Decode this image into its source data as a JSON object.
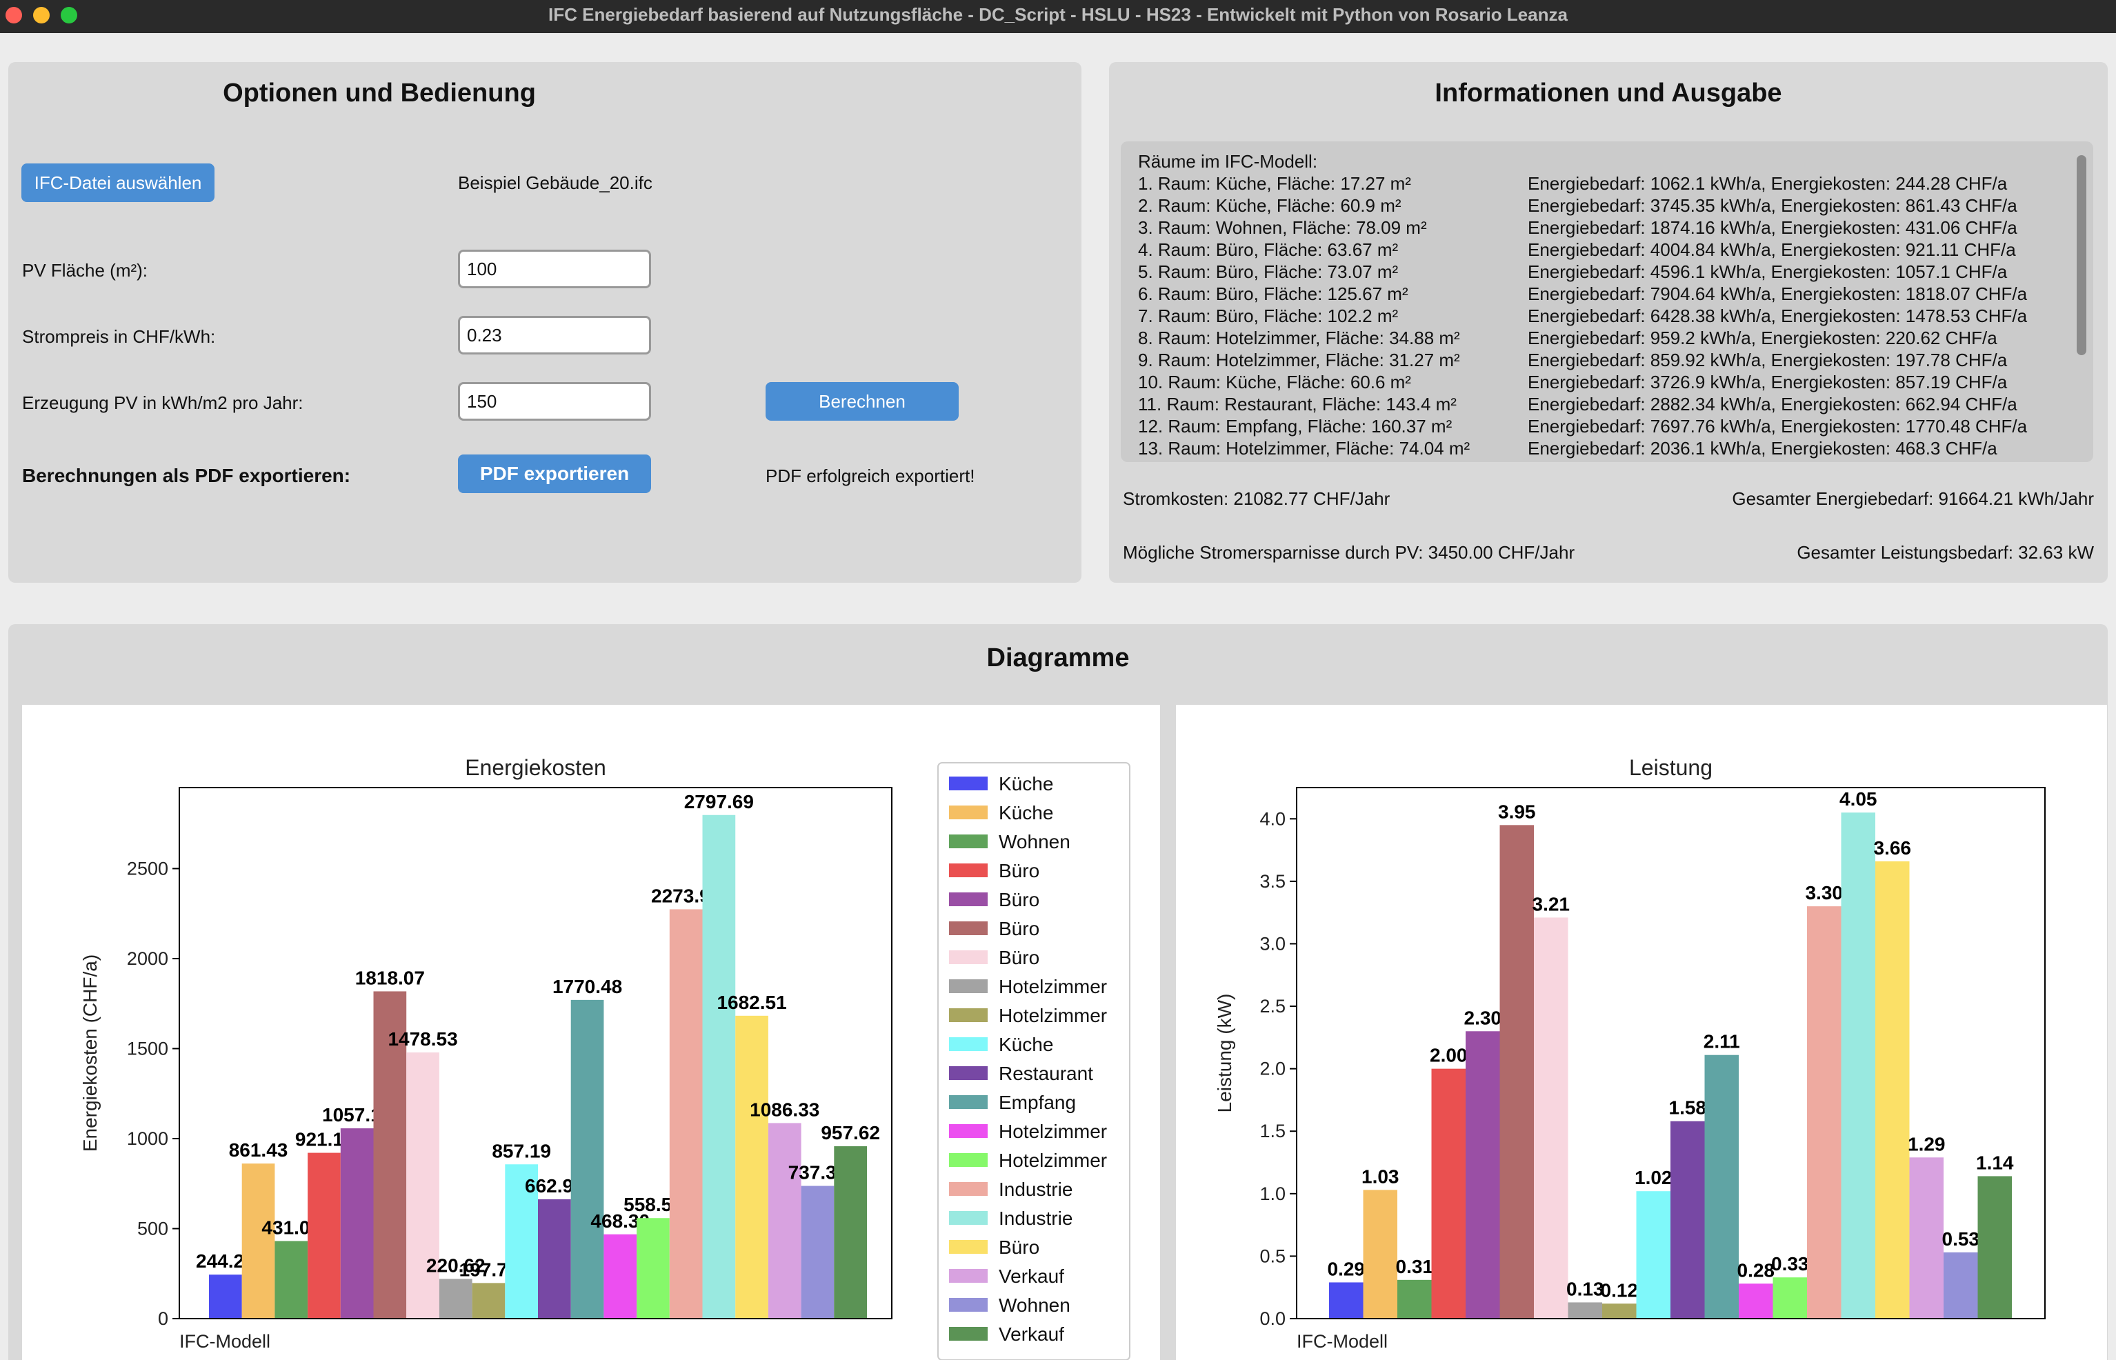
{
  "window": {
    "title": "IFC Energiebedarf basierend auf Nutzungsfläche - DC_Script - HSLU - HS23 - Entwickelt mit Python von Rosario Leanza"
  },
  "options": {
    "title": "Optionen und Bedienung",
    "select_button": "IFC-Datei auswählen",
    "file_name": "Beispiel Gebäude_20.ifc",
    "pv_area_label": "PV Fläche (m²):",
    "pv_area_value": "100",
    "price_label": "Strompreis in CHF/kWh:",
    "price_value": "0.23",
    "production_label": "Erzeugung PV in kWh/m2 pro Jahr:",
    "production_value": "150",
    "calc_button": "Berechnen",
    "export_label": "Berechnungen als PDF exportieren:",
    "export_button": "PDF exportieren",
    "export_status": "PDF erfolgreich exportiert!"
  },
  "info": {
    "title": "Informationen und Ausgabe",
    "list_header": "Räume im IFC-Modell:",
    "rooms": [
      {
        "left": "1. Raum: Küche, Fläche: 17.27 m²",
        "right": "Energiebedarf: 1062.1 kWh/a, Energiekosten: 244.28 CHF/a"
      },
      {
        "left": "2. Raum: Küche, Fläche: 60.9 m²",
        "right": "Energiebedarf: 3745.35 kWh/a, Energiekosten: 861.43 CHF/a"
      },
      {
        "left": "3. Raum: Wohnen, Fläche: 78.09 m²",
        "right": "Energiebedarf: 1874.16 kWh/a, Energiekosten: 431.06 CHF/a"
      },
      {
        "left": "4. Raum: Büro, Fläche: 63.67 m²",
        "right": "Energiebedarf: 4004.84 kWh/a, Energiekosten: 921.11 CHF/a"
      },
      {
        "left": "5. Raum: Büro, Fläche: 73.07 m²",
        "right": "Energiebedarf: 4596.1 kWh/a, Energiekosten: 1057.1 CHF/a"
      },
      {
        "left": "6. Raum: Büro, Fläche: 125.67 m²",
        "right": "Energiebedarf: 7904.64 kWh/a, Energiekosten: 1818.07 CHF/a"
      },
      {
        "left": "7. Raum: Büro, Fläche: 102.2 m²",
        "right": "Energiebedarf: 6428.38 kWh/a, Energiekosten: 1478.53 CHF/a"
      },
      {
        "left": "8. Raum: Hotelzimmer, Fläche: 34.88 m²",
        "right": "Energiebedarf: 959.2 kWh/a, Energiekosten: 220.62 CHF/a"
      },
      {
        "left": "9. Raum: Hotelzimmer, Fläche: 31.27 m²",
        "right": "Energiebedarf: 859.92 kWh/a, Energiekosten: 197.78 CHF/a"
      },
      {
        "left": "10. Raum: Küche, Fläche: 60.6 m²",
        "right": "Energiebedarf: 3726.9 kWh/a, Energiekosten: 857.19 CHF/a"
      },
      {
        "left": "11. Raum: Restaurant, Fläche: 143.4 m²",
        "right": "Energiebedarf: 2882.34 kWh/a, Energiekosten: 662.94 CHF/a"
      },
      {
        "left": "12. Raum: Empfang, Fläche: 160.37 m²",
        "right": "Energiebedarf: 7697.76 kWh/a, Energiekosten: 1770.48 CHF/a"
      },
      {
        "left": "13. Raum: Hotelzimmer, Fläche: 74.04 m²",
        "right": "Energiebedarf: 2036.1 kWh/a, Energiekosten: 468.3 CHF/a"
      }
    ],
    "electricity_cost": "Stromkosten: 21082.77 CHF/Jahr",
    "total_energy": "Gesamter Energiebedarf: 91664.21 kWh/Jahr",
    "pv_savings": "Mögliche Stromersparnisse durch PV: 3450.00 CHF/Jahr",
    "total_power": "Gesamter Leistungsbedarf: 32.63 kW"
  },
  "diagrams": {
    "title": "Diagramme"
  },
  "chart_data": [
    {
      "type": "bar",
      "title": "Energiekosten",
      "ylabel": "Energiekosten (CHF/a)",
      "xlabel": "",
      "category_label": "IFC-Modell",
      "ylim": [
        0,
        2950
      ],
      "yticks": [
        0,
        500,
        1000,
        1500,
        2000,
        2500
      ],
      "grid": false,
      "legend": "right",
      "series": [
        {
          "name": "Küche",
          "value": 244.28,
          "label": "244.28",
          "color": "#4b4cf0"
        },
        {
          "name": "Küche",
          "value": 861.43,
          "label": "861.43",
          "color": "#f5bf63"
        },
        {
          "name": "Wohnen",
          "value": 431.06,
          "label": "431.06",
          "color": "#5fa35a"
        },
        {
          "name": "Büro",
          "value": 921.11,
          "label": "921.11",
          "color": "#ea5050"
        },
        {
          "name": "Büro",
          "value": 1057.1,
          "label": "1057.10",
          "color": "#9a4fa5"
        },
        {
          "name": "Büro",
          "value": 1818.07,
          "label": "1818.07",
          "color": "#b06a6a"
        },
        {
          "name": "Büro",
          "value": 1478.53,
          "label": "1478.53",
          "color": "#f8d6df"
        },
        {
          "name": "Hotelzimmer",
          "value": 220.62,
          "label": "220.62",
          "color": "#a3a3a3"
        },
        {
          "name": "Hotelzimmer",
          "value": 197.78,
          "label": "197.78",
          "color": "#a9a65f"
        },
        {
          "name": "Küche",
          "value": 857.19,
          "label": "857.19",
          "color": "#7ff8fa"
        },
        {
          "name": "Restaurant",
          "value": 662.94,
          "label": "662.94",
          "color": "#7748a4"
        },
        {
          "name": "Empfang",
          "value": 1770.48,
          "label": "1770.48",
          "color": "#60a4a4"
        },
        {
          "name": "Hotelzimmer",
          "value": 468.3,
          "label": "468.30",
          "color": "#ec4ff0"
        },
        {
          "name": "Hotelzimmer",
          "value": 558.5,
          "label": "558.50",
          "color": "#86f86a"
        },
        {
          "name": "Industrie",
          "value": 2273.92,
          "label": "2273.92",
          "color": "#eeaaa0"
        },
        {
          "name": "Industrie",
          "value": 2797.69,
          "label": "2797.69",
          "color": "#99e9e0"
        },
        {
          "name": "Büro",
          "value": 1682.51,
          "label": "1682.51",
          "color": "#fbe067"
        },
        {
          "name": "Verkauf",
          "value": 1086.33,
          "label": "1086.33",
          "color": "#d8a2e0"
        },
        {
          "name": "Wohnen",
          "value": 737.31,
          "label": "737.31",
          "color": "#9391d8"
        },
        {
          "name": "Verkauf",
          "value": 957.62,
          "label": "957.62",
          "color": "#5b9355"
        }
      ]
    },
    {
      "type": "bar",
      "title": "Leistung",
      "ylabel": "Leistung (kW)",
      "xlabel": "",
      "category_label": "IFC-Modell",
      "ylim": [
        0,
        4.25
      ],
      "yticks": [
        "0.0",
        "0.5",
        "1.0",
        "1.5",
        "2.0",
        "2.5",
        "3.0",
        "3.5",
        "4.0"
      ],
      "grid": false,
      "series": [
        {
          "value": 0.29,
          "label": "0.29",
          "color": "#4b4cf0"
        },
        {
          "value": 1.03,
          "label": "1.03",
          "color": "#f5bf63"
        },
        {
          "value": 0.31,
          "label": "0.31",
          "color": "#5fa35a"
        },
        {
          "value": 2.0,
          "label": "2.00",
          "color": "#ea5050"
        },
        {
          "value": 2.3,
          "label": "2.30",
          "color": "#9a4fa5"
        },
        {
          "value": 3.95,
          "label": "3.95",
          "color": "#b06a6a"
        },
        {
          "value": 3.21,
          "label": "3.21",
          "color": "#f8d6df"
        },
        {
          "value": 0.13,
          "label": "0.13",
          "color": "#a3a3a3"
        },
        {
          "value": 0.12,
          "label": "0.12",
          "color": "#a9a65f"
        },
        {
          "value": 1.02,
          "label": "1.02",
          "color": "#7ff8fa"
        },
        {
          "value": 1.58,
          "label": "1.58",
          "color": "#7748a4"
        },
        {
          "value": 2.11,
          "label": "2.11",
          "color": "#60a4a4"
        },
        {
          "value": 0.28,
          "label": "0.28",
          "color": "#ec4ff0"
        },
        {
          "value": 0.33,
          "label": "0.33",
          "color": "#86f86a"
        },
        {
          "value": 3.3,
          "label": "3.30",
          "color": "#eeaaa0"
        },
        {
          "value": 4.05,
          "label": "4.05",
          "color": "#99e9e0"
        },
        {
          "value": 3.66,
          "label": "3.66",
          "color": "#fbe067"
        },
        {
          "value": 1.29,
          "label": "1.29",
          "color": "#d8a2e0"
        },
        {
          "value": 0.53,
          "label": "0.53",
          "color": "#9391d8"
        },
        {
          "value": 1.14,
          "label": "1.14",
          "color": "#5b9355"
        }
      ]
    }
  ]
}
